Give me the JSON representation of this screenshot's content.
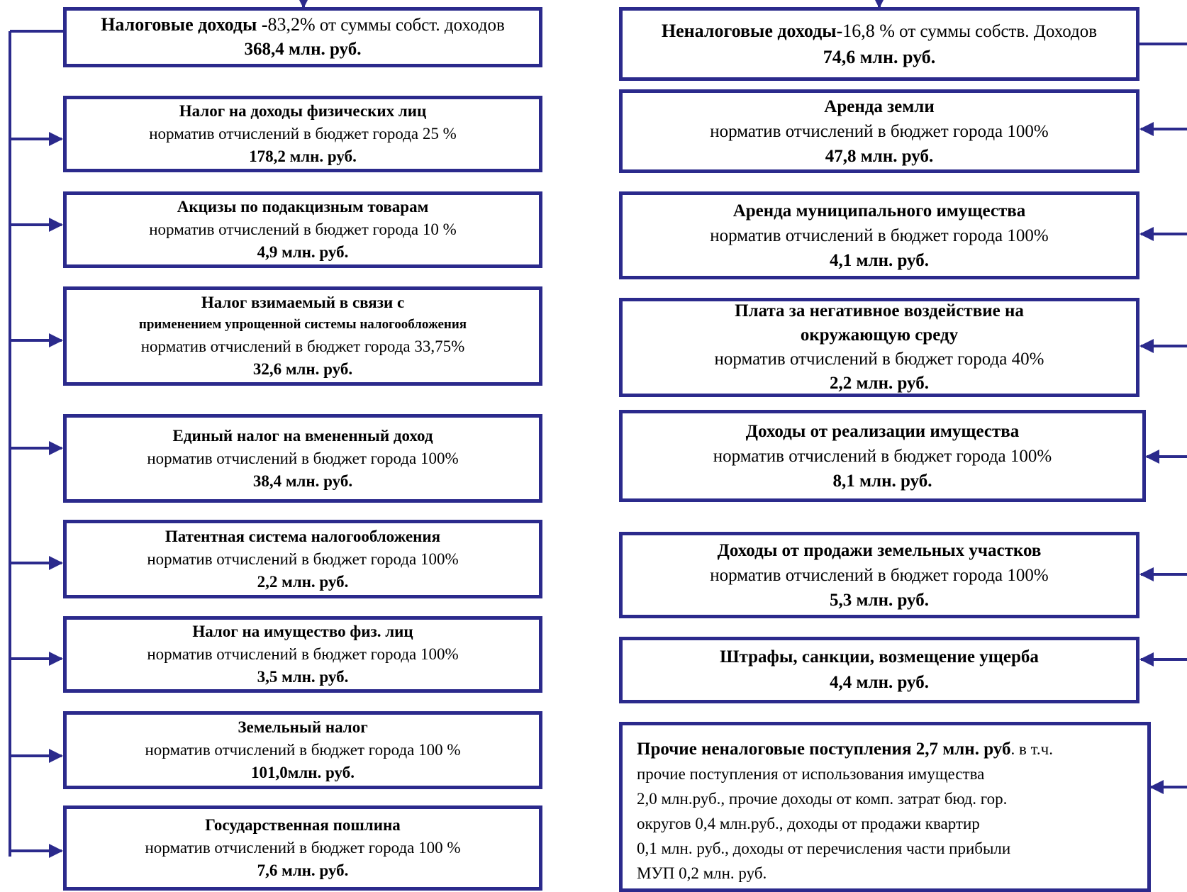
{
  "tax": {
    "header": {
      "title": "Налоговые доходы -",
      "share": "83,2%",
      "share_note": "от суммы собст. доходов",
      "amount": "368,4 млн. руб."
    },
    "items": [
      {
        "title": "Налог на доходы физических лиц",
        "rate": "норматив отчислений в бюджет города 25 %",
        "amount": "178,2 млн. руб."
      },
      {
        "title": "Акцизы по подакцизным товарам",
        "rate": "норматив отчислений в бюджет города 10 %",
        "amount": "4,9 млн. руб."
      },
      {
        "title": "Налог взимаемый в связи с",
        "subtitle": "применением упрощенной системы налогообложения",
        "rate": "норматив отчислений в бюджет города 33,75%",
        "amount": "32,6 млн. руб."
      },
      {
        "title": "Единый налог на вмененный доход",
        "rate": "норматив отчислений в бюджет города 100%",
        "amount": "38,4 млн. руб."
      },
      {
        "title": "Патентная система налогообложения",
        "rate": "норматив отчислений в бюджет города 100%",
        "amount": "2,2 млн. руб."
      },
      {
        "title": "Налог на имущество физ. лиц",
        "rate": "норматив отчислений в бюджет  города 100%",
        "amount": "3,5 млн. руб."
      },
      {
        "title": "Земельный налог",
        "rate": "норматив отчислений в бюджет города 100 %",
        "amount": "101,0млн. руб."
      },
      {
        "title": "Государственная пошлина",
        "rate": "норматив отчислений в бюджет города 100 %",
        "amount": "7,6 млн. руб."
      }
    ]
  },
  "nontax": {
    "header": {
      "title": "Неналоговые доходы-",
      "share": "16,8 %",
      "share_note": "от суммы собств. Доходов",
      "amount": "74,6 млн. руб."
    },
    "items": [
      {
        "title": "Аренда земли",
        "rate": "норматив отчислений в бюджет города 100%",
        "amount": "47,8 млн. руб."
      },
      {
        "title": "Аренда муниципального имущества",
        "rate": "норматив отчислений в бюджет города 100%",
        "amount": "4,1 млн. руб."
      },
      {
        "title": "Плата за негативное воздействие на",
        "subtitle": "окружающую среду",
        "rate": "норматив отчислений в бюджет города  40%",
        "amount": "2,2 млн. руб."
      },
      {
        "title": "Доходы от реализации имущества",
        "rate": "норматив отчислений в бюджет города 100%",
        "amount": "8,1 млн. руб."
      },
      {
        "title": "Доходы от продажи земельных участков",
        "rate": "норматив отчислений в бюджет города 100%",
        "amount": "5,3 млн. руб."
      },
      {
        "title": "Штрафы, санкции, возмещение ущерба",
        "amount": "4,4 млн. руб."
      }
    ],
    "other": {
      "title": "Прочие неналоговые  поступления 2,7 млн. руб",
      "text_1": ". в т.ч.",
      "text_2": "прочие  поступления от использования имущества",
      "text_3": "2,0 млн.руб., прочие доходы от комп. затрат бюд. гор.",
      "text_4": "округов 0,4 млн.руб., доходы от продажи квартир",
      "text_5": "0,1 млн. руб., доходы от перечисления части прибыли",
      "text_6": "МУП 0,2 млн. руб."
    }
  },
  "colors": {
    "border": "#2b2a8c",
    "line": "#2b2a8c"
  }
}
